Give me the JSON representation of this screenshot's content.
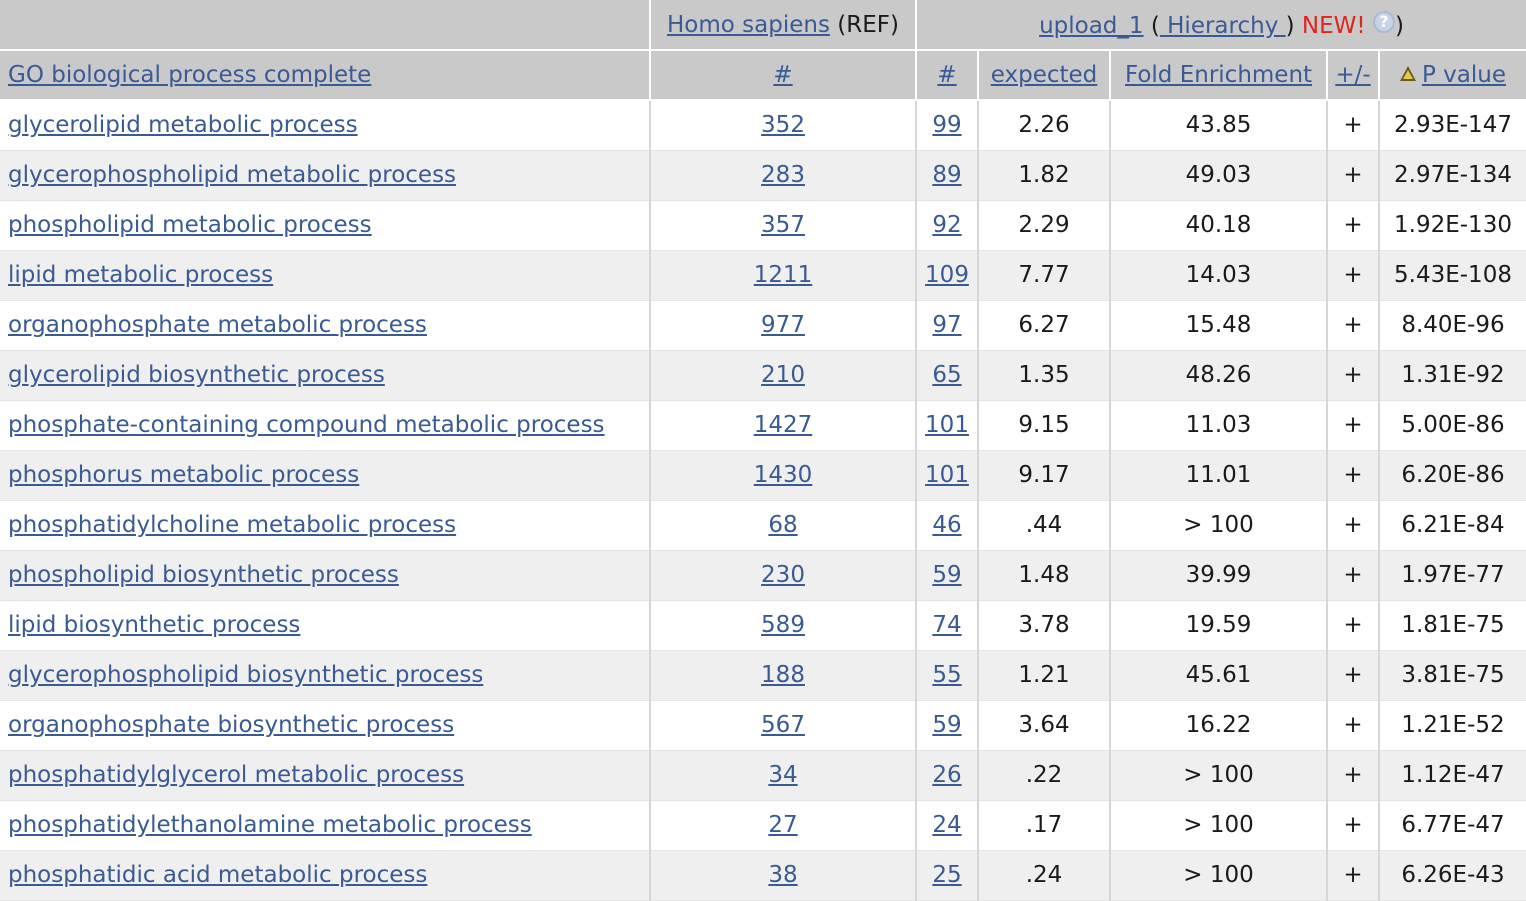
{
  "header": {
    "reference_link": "Homo sapiens",
    "reference_suffix": "(REF)",
    "upload_link": "upload_1",
    "open_paren": "(",
    "hierarchy_link": " Hierarchy ",
    "close_paren_before": ")",
    "new_label": "NEW!",
    "help_glyph": "?",
    "close_paren": ")"
  },
  "columns": {
    "term": "GO biological process complete",
    "ref_count": "#",
    "upload_count": "#",
    "expected": "expected",
    "fold": "Fold Enrichment",
    "sign": "+/-",
    "pvalue": "P value"
  },
  "rows": [
    {
      "term": "glycerolipid metabolic process",
      "ref": "352",
      "count": "99",
      "expected": "2.26",
      "fold": "43.85",
      "sign": "+",
      "pvalue": "2.93E-147"
    },
    {
      "term": "glycerophospholipid metabolic process",
      "ref": "283",
      "count": "89",
      "expected": "1.82",
      "fold": "49.03",
      "sign": "+",
      "pvalue": "2.97E-134"
    },
    {
      "term": "phospholipid metabolic process",
      "ref": "357",
      "count": "92",
      "expected": "2.29",
      "fold": "40.18",
      "sign": "+",
      "pvalue": "1.92E-130"
    },
    {
      "term": "lipid metabolic process",
      "ref": "1211",
      "count": "109",
      "expected": "7.77",
      "fold": "14.03",
      "sign": "+",
      "pvalue": "5.43E-108"
    },
    {
      "term": "organophosphate metabolic process",
      "ref": "977",
      "count": "97",
      "expected": "6.27",
      "fold": "15.48",
      "sign": "+",
      "pvalue": "8.40E-96"
    },
    {
      "term": "glycerolipid biosynthetic process",
      "ref": "210",
      "count": "65",
      "expected": "1.35",
      "fold": "48.26",
      "sign": "+",
      "pvalue": "1.31E-92"
    },
    {
      "term": "phosphate-containing compound metabolic process",
      "ref": "1427",
      "count": "101",
      "expected": "9.15",
      "fold": "11.03",
      "sign": "+",
      "pvalue": "5.00E-86"
    },
    {
      "term": "phosphorus metabolic process",
      "ref": "1430",
      "count": "101",
      "expected": "9.17",
      "fold": "11.01",
      "sign": "+",
      "pvalue": "6.20E-86"
    },
    {
      "term": "phosphatidylcholine metabolic process",
      "ref": "68",
      "count": "46",
      "expected": ".44",
      "fold": "> 100",
      "sign": "+",
      "pvalue": "6.21E-84"
    },
    {
      "term": "phospholipid biosynthetic process",
      "ref": "230",
      "count": "59",
      "expected": "1.48",
      "fold": "39.99",
      "sign": "+",
      "pvalue": "1.97E-77"
    },
    {
      "term": "lipid biosynthetic process",
      "ref": "589",
      "count": "74",
      "expected": "3.78",
      "fold": "19.59",
      "sign": "+",
      "pvalue": "1.81E-75"
    },
    {
      "term": "glycerophospholipid biosynthetic process",
      "ref": "188",
      "count": "55",
      "expected": "1.21",
      "fold": "45.61",
      "sign": "+",
      "pvalue": "3.81E-75"
    },
    {
      "term": "organophosphate biosynthetic process",
      "ref": "567",
      "count": "59",
      "expected": "3.64",
      "fold": "16.22",
      "sign": "+",
      "pvalue": "1.21E-52"
    },
    {
      "term": "phosphatidylglycerol metabolic process",
      "ref": "34",
      "count": "26",
      "expected": ".22",
      "fold": "> 100",
      "sign": "+",
      "pvalue": "1.12E-47"
    },
    {
      "term": "phosphatidylethanolamine metabolic process",
      "ref": "27",
      "count": "24",
      "expected": ".17",
      "fold": "> 100",
      "sign": "+",
      "pvalue": "6.77E-47"
    },
    {
      "term": "phosphatidic acid metabolic process",
      "ref": "38",
      "count": "25",
      "expected": ".24",
      "fold": "> 100",
      "sign": "+",
      "pvalue": "6.26E-43"
    }
  ],
  "colors": {
    "link": "#3a5a94",
    "header_bg": "#c9c9c9",
    "stripe_bg": "#efefef",
    "new_label": "#e0251b"
  },
  "icons": {
    "help": "help-circle-icon",
    "sort": "sort-ascending-triangle-icon"
  }
}
